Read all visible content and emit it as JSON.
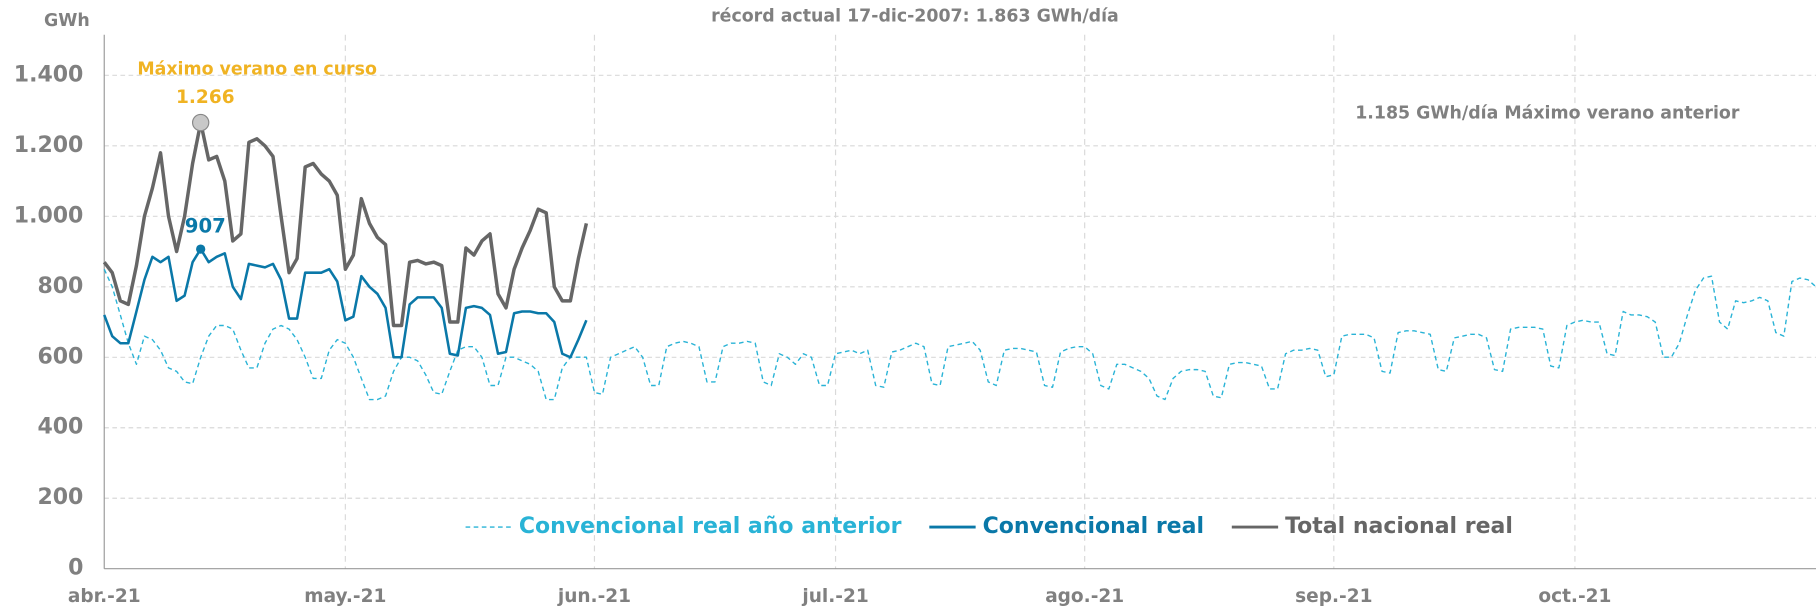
{
  "chart_data": {
    "type": "line",
    "title": "récord actual 17-dic-2007:  1.863 GWh/día",
    "y_label": "GWh",
    "xlim": [
      0,
      213
    ],
    "xticks": [
      {
        "value": 0,
        "label": "abr.-21"
      },
      {
        "value": 30,
        "label": "may.-21"
      },
      {
        "value": 61,
        "label": "jun.-21"
      },
      {
        "value": 91,
        "label": "jul.-21"
      },
      {
        "value": 122,
        "label": "ago.-21"
      },
      {
        "value": 153,
        "label": "sep.-21"
      },
      {
        "value": 183,
        "label": "oct.-21"
      }
    ],
    "ylim": [
      0,
      1400
    ],
    "yticks": [
      0,
      {
        "value": 200,
        "label": "200"
      },
      400,
      600,
      800,
      {
        "value": 1000,
        "label": "1.000"
      },
      {
        "value": 1200,
        "label": "1.200"
      },
      {
        "value": 1400,
        "label": "1.400"
      }
    ],
    "grid": true,
    "legend": "bottom",
    "series": [
      {
        "name": "Convencional real año anterior",
        "color": "#29b3d6",
        "dashed": true,
        "values": [
          850,
          800,
          720,
          640,
          580,
          660,
          650,
          620,
          570,
          560,
          530,
          525,
          600,
          660,
          690,
          690,
          680,
          620,
          570,
          570,
          640,
          680,
          690,
          680,
          650,
          600,
          540,
          540,
          620,
          650,
          640,
          600,
          540,
          480,
          480,
          490,
          560,
          600,
          600,
          590,
          550,
          500,
          495,
          560,
          620,
          630,
          630,
          600,
          520,
          520,
          600,
          600,
          590,
          580,
          560,
          480,
          480,
          570,
          600,
          600,
          600,
          500,
          495,
          600,
          610,
          620,
          630,
          600,
          520,
          520,
          630,
          640,
          645,
          640,
          630,
          530,
          530,
          630,
          640,
          640,
          645,
          640,
          530,
          520,
          610,
          600,
          580,
          610,
          600,
          520,
          520,
          610,
          615,
          620,
          610,
          620,
          520,
          515,
          615,
          620,
          630,
          640,
          630,
          525,
          520,
          630,
          635,
          640,
          645,
          620,
          530,
          520,
          620,
          625,
          625,
          620,
          615,
          520,
          515,
          615,
          625,
          630,
          630,
          610,
          520,
          510,
          580,
          580,
          570,
          560,
          540,
          490,
          480,
          540,
          560,
          565,
          565,
          560,
          490,
          485,
          580,
          585,
          585,
          580,
          575,
          510,
          510,
          610,
          620,
          620,
          625,
          620,
          545,
          550,
          660,
          665,
          665,
          665,
          655,
          560,
          555,
          670,
          675,
          675,
          670,
          665,
          565,
          560,
          655,
          660,
          665,
          665,
          655,
          565,
          560,
          680,
          685,
          685,
          685,
          680,
          575,
          570,
          690,
          700,
          705,
          700,
          700,
          610,
          605,
          730,
          720,
          720,
          715,
          700,
          600,
          600,
          640,
          720,
          790,
          825,
          830,
          700,
          680,
          760,
          755,
          760,
          770,
          760,
          670,
          660,
          815,
          825,
          820,
          800
        ]
      },
      {
        "name": "Convencional real",
        "color": "#0a78a8",
        "values": [
          720,
          660,
          640,
          640,
          730,
          820,
          885,
          870,
          885,
          760,
          775,
          870,
          907,
          870,
          885,
          895,
          800,
          765,
          865,
          860,
          855,
          865,
          820,
          710,
          710,
          840,
          840,
          840,
          850,
          815,
          705,
          715,
          830,
          800,
          780,
          740,
          600,
          600,
          750,
          770,
          770,
          770,
          740,
          610,
          605,
          740,
          745,
          740,
          720,
          610,
          615,
          725,
          730,
          730,
          725,
          725,
          700,
          610,
          600,
          650,
          705
        ]
      },
      {
        "name": "Total nacional real",
        "color": "#666666",
        "values": [
          870,
          840,
          760,
          750,
          860,
          1000,
          1080,
          1180,
          1000,
          900,
          1000,
          1150,
          1266,
          1160,
          1170,
          1100,
          930,
          950,
          1210,
          1220,
          1200,
          1170,
          1000,
          840,
          880,
          1140,
          1150,
          1120,
          1100,
          1060,
          850,
          890,
          1050,
          980,
          940,
          920,
          690,
          690,
          870,
          875,
          865,
          870,
          860,
          700,
          700,
          910,
          890,
          930,
          950,
          780,
          740,
          850,
          910,
          960,
          1020,
          1010,
          800,
          760,
          760,
          880,
          980
        ]
      }
    ],
    "highlights": [
      {
        "x": 12,
        "value": 1266,
        "label": "1.266",
        "color": "#f0b323"
      },
      {
        "x": 12,
        "value": 907,
        "label": "907",
        "color": "#0a78a8"
      }
    ],
    "annotations": [
      {
        "text": "Máximo verano en curso",
        "color": "#f0b323"
      },
      {
        "text": "1.185 GWh/día  Máximo verano anterior",
        "color": "#808080"
      }
    ]
  }
}
